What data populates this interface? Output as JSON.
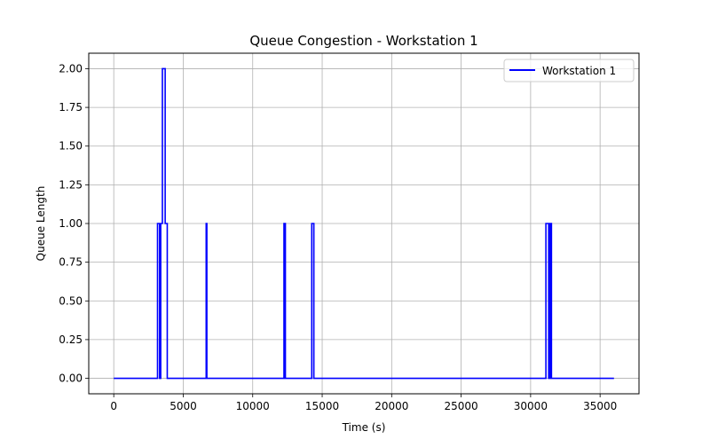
{
  "chart_data": {
    "type": "line",
    "title": "Queue Congestion - Workstation 1",
    "xlabel": "Time (s)",
    "ylabel": "Queue Length",
    "xlim": [
      -1800,
      37800
    ],
    "ylim": [
      -0.1,
      2.1
    ],
    "xticks": [
      0,
      5000,
      10000,
      15000,
      20000,
      25000,
      30000,
      35000
    ],
    "yticks": [
      0.0,
      0.25,
      0.5,
      0.75,
      1.0,
      1.25,
      1.5,
      1.75,
      2.0
    ],
    "xtick_labels": [
      "0",
      "5000",
      "10000",
      "15000",
      "20000",
      "25000",
      "30000",
      "35000"
    ],
    "ytick_labels": [
      "0.00",
      "0.25",
      "0.50",
      "0.75",
      "1.00",
      "1.25",
      "1.50",
      "1.75",
      "2.00"
    ],
    "grid": true,
    "legend_position": "top-right",
    "series": [
      {
        "name": "Workstation 1",
        "color": "#0000ff",
        "step": true,
        "points": [
          [
            0,
            0
          ],
          [
            3150,
            0
          ],
          [
            3150,
            1
          ],
          [
            3300,
            1
          ],
          [
            3300,
            0
          ],
          [
            3380,
            0
          ],
          [
            3380,
            1
          ],
          [
            3500,
            1
          ],
          [
            3500,
            2
          ],
          [
            3700,
            2
          ],
          [
            3700,
            1
          ],
          [
            3850,
            1
          ],
          [
            3850,
            0
          ],
          [
            6650,
            0
          ],
          [
            6650,
            1
          ],
          [
            6700,
            1
          ],
          [
            6700,
            0
          ],
          [
            12250,
            0
          ],
          [
            12250,
            1
          ],
          [
            12350,
            1
          ],
          [
            12350,
            0
          ],
          [
            14250,
            0
          ],
          [
            14250,
            1
          ],
          [
            14400,
            1
          ],
          [
            14400,
            0
          ],
          [
            31100,
            0
          ],
          [
            31100,
            1
          ],
          [
            31300,
            1
          ],
          [
            31300,
            0
          ],
          [
            31400,
            0
          ],
          [
            31400,
            1
          ],
          [
            31500,
            1
          ],
          [
            31500,
            0
          ],
          [
            36000,
            0
          ]
        ]
      }
    ]
  }
}
